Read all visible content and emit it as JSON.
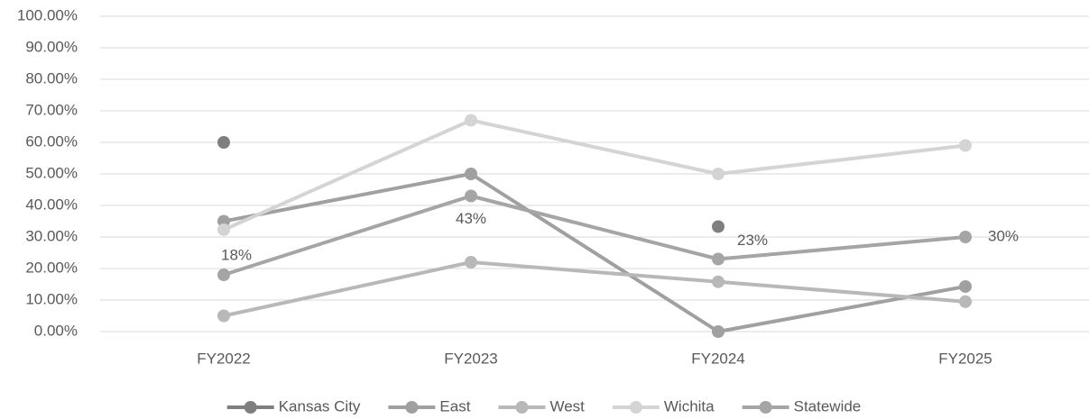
{
  "chart_data": {
    "type": "line",
    "categories": [
      "FY2022",
      "FY2023",
      "FY2024",
      "FY2025"
    ],
    "series": [
      {
        "name": "Kansas City",
        "color": "#7f7f7f",
        "values": [
          60,
          null,
          33.3,
          null
        ]
      },
      {
        "name": "East",
        "color": "#a0a0a0",
        "values": [
          35,
          50,
          0,
          14.3
        ]
      },
      {
        "name": "West",
        "color": "#b8b8b8",
        "values": [
          5,
          22,
          15.8,
          9.5
        ]
      },
      {
        "name": "Wichita",
        "color": "#d4d4d4",
        "values": [
          32.3,
          67,
          50,
          59
        ]
      },
      {
        "name": "Statewide",
        "color": "#a5a5a5",
        "values": [
          18,
          43,
          23,
          30
        ],
        "value_labels": [
          "18%",
          "43%",
          "23%",
          "30%"
        ]
      }
    ],
    "ylim": [
      0,
      100
    ],
    "yticks": [
      {
        "value": 0,
        "label": "0.00%"
      },
      {
        "value": 10,
        "label": "10.00%"
      },
      {
        "value": 20,
        "label": "20.00%"
      },
      {
        "value": 30,
        "label": "30.00%"
      },
      {
        "value": 40,
        "label": "40.00%"
      },
      {
        "value": 50,
        "label": "50.00%"
      },
      {
        "value": 60,
        "label": "60.00%"
      },
      {
        "value": 70,
        "label": "70.00%"
      },
      {
        "value": 80,
        "label": "80.00%"
      },
      {
        "value": 90,
        "label": "90.00%"
      },
      {
        "value": 100,
        "label": "100.00%"
      }
    ],
    "grid": true,
    "legend": "bottom"
  }
}
